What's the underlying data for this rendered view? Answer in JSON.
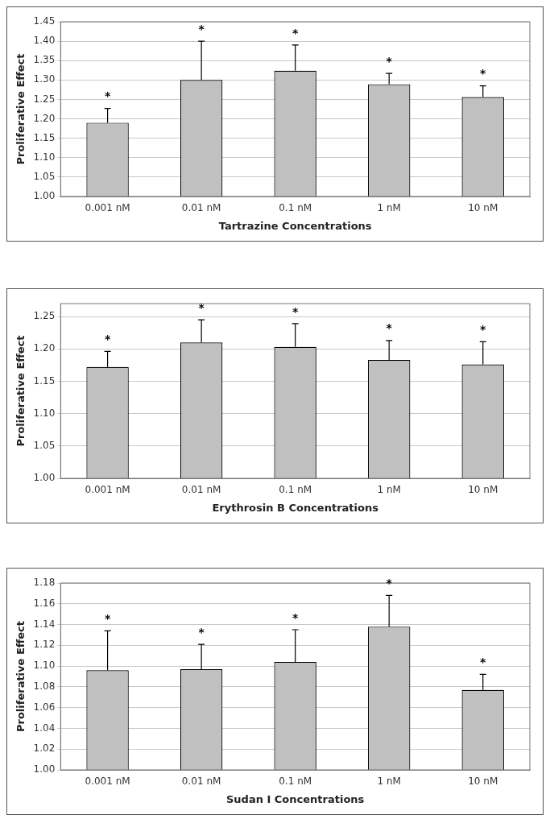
{
  "chart_data": [
    {
      "type": "bar",
      "xlabel": "Tartrazine Concentrations",
      "ylabel": "Proliferative Effect",
      "categories": [
        "0.001 nM",
        "0.01 nM",
        "0.1 nM",
        "1 nM",
        "10 nM"
      ],
      "values": [
        1.19,
        1.3,
        1.324,
        1.289,
        1.256
      ],
      "errors": [
        [
          1.19,
          1.227
        ],
        [
          1.3,
          1.4
        ],
        [
          1.324,
          1.39
        ],
        [
          1.289,
          1.317
        ],
        [
          1.256,
          1.285
        ]
      ],
      "color": "#c0c0c0",
      "ylim": [
        1.0,
        1.45
      ],
      "yticks": [
        {
          "value": 1.0,
          "label": "1.00"
        },
        {
          "value": 1.05,
          "label": "1.05"
        },
        {
          "value": 1.1,
          "label": "1.10"
        },
        {
          "value": 1.15,
          "label": "1.15"
        },
        {
          "value": 1.2,
          "label": "1.20"
        },
        {
          "value": 1.25,
          "label": "1.25"
        },
        {
          "value": 1.3,
          "label": "1.30"
        },
        {
          "value": 1.35,
          "label": "1.35"
        },
        {
          "value": 1.4,
          "label": "1.40"
        },
        {
          "value": 1.45,
          "label": "1.45"
        }
      ],
      "grid": "y",
      "legend": false,
      "annotations": [
        "*",
        "*",
        "*",
        "*",
        "*"
      ]
    },
    {
      "type": "bar",
      "xlabel": "Erythrosin B Concentrations",
      "ylabel": "Proliferative Effect",
      "categories": [
        "0.001 nM",
        "0.01 nM",
        "0.1 nM",
        "1 nM",
        "10 nM"
      ],
      "values": [
        1.172,
        1.21,
        1.203,
        1.183,
        1.176
      ],
      "errors": [
        [
          1.172,
          1.196
        ],
        [
          1.21,
          1.245
        ],
        [
          1.203,
          1.239
        ],
        [
          1.183,
          1.213
        ],
        [
          1.176,
          1.211
        ]
      ],
      "color": "#c0c0c0",
      "ylim": [
        1.0,
        1.27
      ],
      "yticks": [
        {
          "value": 1.0,
          "label": "1.00"
        },
        {
          "value": 1.05,
          "label": "1.05"
        },
        {
          "value": 1.1,
          "label": "1.10"
        },
        {
          "value": 1.15,
          "label": "1.15"
        },
        {
          "value": 1.2,
          "label": "1.20"
        },
        {
          "value": 1.25,
          "label": "1.25"
        }
      ],
      "grid": "y",
      "legend": false,
      "annotations": [
        "*",
        "*",
        "*",
        "*",
        "*"
      ]
    },
    {
      "type": "bar",
      "xlabel": "Sudan I Concentrations",
      "ylabel": "Proliferative Effect",
      "categories": [
        "0.001 nM",
        "0.01 nM",
        "0.1 nM",
        "1 nM",
        "10 nM"
      ],
      "values": [
        1.096,
        1.097,
        1.104,
        1.138,
        1.077
      ],
      "errors": [
        [
          1.096,
          1.134
        ],
        [
          1.097,
          1.121
        ],
        [
          1.104,
          1.135
        ],
        [
          1.138,
          1.168
        ],
        [
          1.077,
          1.092
        ]
      ],
      "color": "#c0c0c0",
      "ylim": [
        1.0,
        1.18
      ],
      "yticks": [
        {
          "value": 1.0,
          "label": "1.00"
        },
        {
          "value": 1.02,
          "label": "1.02"
        },
        {
          "value": 1.04,
          "label": "1.04"
        },
        {
          "value": 1.06,
          "label": "1.06"
        },
        {
          "value": 1.08,
          "label": "1.08"
        },
        {
          "value": 1.1,
          "label": "1.10"
        },
        {
          "value": 1.12,
          "label": "1.12"
        },
        {
          "value": 1.14,
          "label": "1.14"
        },
        {
          "value": 1.16,
          "label": "1.16"
        },
        {
          "value": 1.18,
          "label": "1.18"
        }
      ],
      "grid": "y",
      "legend": false,
      "annotations": [
        "*",
        "*",
        "*",
        "*",
        "*"
      ]
    }
  ]
}
